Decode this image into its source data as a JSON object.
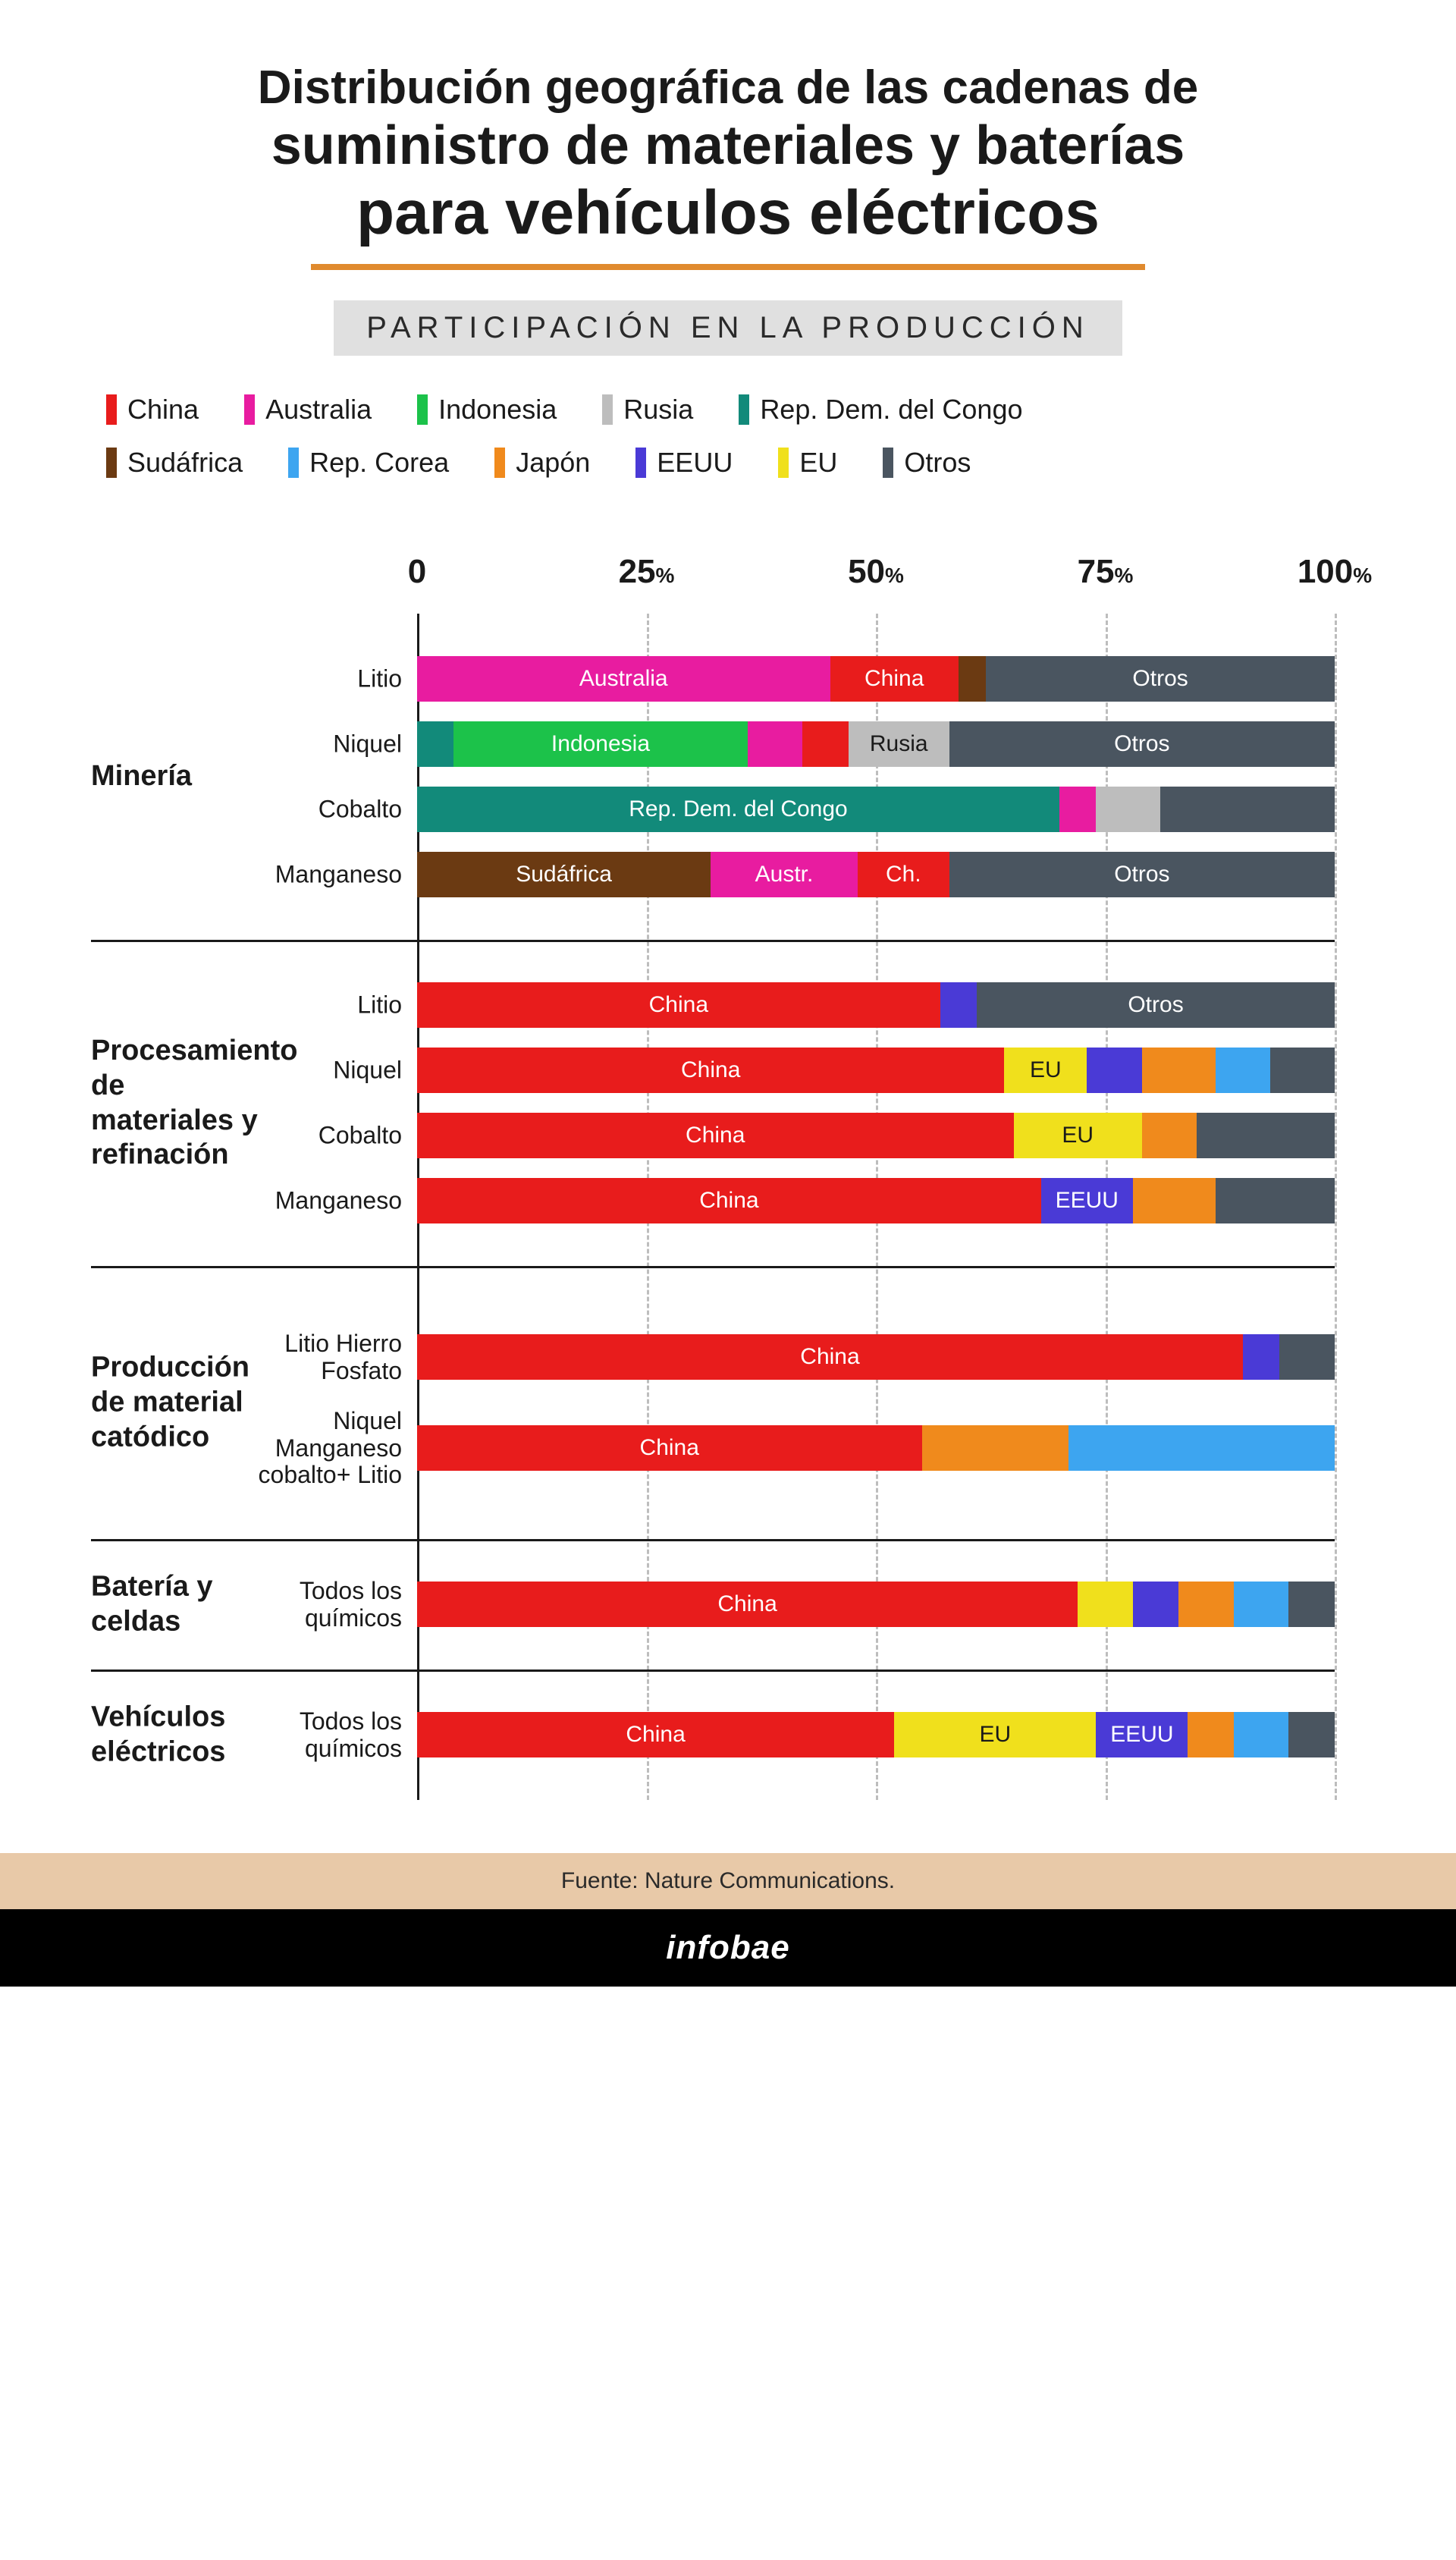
{
  "title": {
    "line1": "Distribución geográfica de las cadenas de",
    "line2": "suministro de materiales y baterías",
    "line3": "para vehículos eléctricos",
    "underline_color": "#e08a2e",
    "title_color": "#1a1a1a"
  },
  "subtitle": {
    "text": "PARTICIPACIÓN EN LA PRODUCCIÓN",
    "background": "#e0e0e0"
  },
  "legend": [
    {
      "label": "China",
      "color": "#e81c1c"
    },
    {
      "label": "Australia",
      "color": "#e81ca0"
    },
    {
      "label": "Indonesia",
      "color": "#1cc24a"
    },
    {
      "label": "Rusia",
      "color": "#bdbdbd"
    },
    {
      "label": "Rep. Dem. del Congo",
      "color": "#128a7a"
    },
    {
      "label": "Sudáfrica",
      "color": "#6b3a12"
    },
    {
      "label": "Rep. Corea",
      "color": "#3da5f0"
    },
    {
      "label": "Japón",
      "color": "#f08a1c"
    },
    {
      "label": "EEUU",
      "color": "#4a3ad6"
    },
    {
      "label": "EU",
      "color": "#f0e01c"
    },
    {
      "label": "Otros",
      "color": "#4a5560"
    }
  ],
  "axis": {
    "ticks": [
      {
        "pos": 0,
        "label": "0",
        "pct": ""
      },
      {
        "pos": 25,
        "label": "25",
        "pct": "%"
      },
      {
        "pos": 50,
        "label": "50",
        "pct": "%"
      },
      {
        "pos": 75,
        "label": "75",
        "pct": "%"
      },
      {
        "pos": 100,
        "label": "100",
        "pct": "%"
      }
    ],
    "grid_color": "#bdbdbd",
    "axis_color": "#1a1a1a"
  },
  "groups": [
    {
      "label": "Minería",
      "rows": [
        {
          "label": "Litio",
          "segments": [
            {
              "legend": "Australia",
              "value": 45,
              "text": "Australia"
            },
            {
              "legend": "China",
              "value": 14,
              "text": "China"
            },
            {
              "legend": "Sudáfrica",
              "value": 3,
              "text": ""
            },
            {
              "legend": "Otros",
              "value": 38,
              "text": "Otros"
            }
          ]
        },
        {
          "label": "Niquel",
          "segments": [
            {
              "legend": "Rep. Dem. del Congo",
              "value": 4,
              "text": ""
            },
            {
              "legend": "Indonesia",
              "value": 32,
              "text": "Indonesia"
            },
            {
              "legend": "Australia",
              "value": 6,
              "text": ""
            },
            {
              "legend": "China",
              "value": 5,
              "text": ""
            },
            {
              "legend": "Rusia",
              "value": 11,
              "text": "Rusia",
              "text_color": "#1a1a1a"
            },
            {
              "legend": "Otros",
              "value": 42,
              "text": "Otros"
            }
          ]
        },
        {
          "label": "Cobalto",
          "segments": [
            {
              "legend": "Rep. Dem. del Congo",
              "value": 70,
              "text": "Rep. Dem. del Congo"
            },
            {
              "legend": "Australia",
              "value": 4,
              "text": ""
            },
            {
              "legend": "Rusia",
              "value": 7,
              "text": ""
            },
            {
              "legend": "Otros",
              "value": 19,
              "text": ""
            }
          ]
        },
        {
          "label": "Manganeso",
          "segments": [
            {
              "legend": "Sudáfrica",
              "value": 32,
              "text": "Sudáfrica"
            },
            {
              "legend": "Australia",
              "value": 16,
              "text": "Austr."
            },
            {
              "legend": "China",
              "value": 10,
              "text": "Ch."
            },
            {
              "legend": "Otros",
              "value": 42,
              "text": "Otros"
            }
          ]
        }
      ]
    },
    {
      "label": "Procesamiento de materiales y refinación",
      "rows": [
        {
          "label": "Litio",
          "segments": [
            {
              "legend": "China",
              "value": 57,
              "text": "China"
            },
            {
              "legend": "EEUU",
              "value": 4,
              "text": ""
            },
            {
              "legend": "Otros",
              "value": 39,
              "text": "Otros"
            }
          ]
        },
        {
          "label": "Niquel",
          "segments": [
            {
              "legend": "China",
              "value": 64,
              "text": "China"
            },
            {
              "legend": "EU",
              "value": 9,
              "text": "EU",
              "text_color": "#1a1a1a"
            },
            {
              "legend": "EEUU",
              "value": 6,
              "text": ""
            },
            {
              "legend": "Japón",
              "value": 8,
              "text": ""
            },
            {
              "legend": "Rep. Corea",
              "value": 6,
              "text": ""
            },
            {
              "legend": "Otros",
              "value": 7,
              "text": ""
            }
          ]
        },
        {
          "label": "Cobalto",
          "segments": [
            {
              "legend": "China",
              "value": 65,
              "text": "China"
            },
            {
              "legend": "EU",
              "value": 14,
              "text": "EU",
              "text_color": "#1a1a1a"
            },
            {
              "legend": "Japón",
              "value": 6,
              "text": ""
            },
            {
              "legend": "Otros",
              "value": 15,
              "text": ""
            }
          ]
        },
        {
          "label": "Manganeso",
          "segments": [
            {
              "legend": "China",
              "value": 68,
              "text": "China"
            },
            {
              "legend": "EEUU",
              "value": 10,
              "text": "EEUU"
            },
            {
              "legend": "Japón",
              "value": 9,
              "text": ""
            },
            {
              "legend": "Otros",
              "value": 13,
              "text": ""
            }
          ]
        }
      ]
    },
    {
      "label": "Producción de material catódico",
      "big_gap": true,
      "rows": [
        {
          "label": "Litio Hierro Fosfato",
          "segments": [
            {
              "legend": "China",
              "value": 90,
              "text": "China"
            },
            {
              "legend": "EEUU",
              "value": 4,
              "text": ""
            },
            {
              "legend": "Otros",
              "value": 6,
              "text": ""
            }
          ]
        },
        {
          "label": "Niquel Manganeso cobalto+ Litio",
          "segments": [
            {
              "legend": "China",
              "value": 55,
              "text": "China"
            },
            {
              "legend": "Japón",
              "value": 16,
              "text": ""
            },
            {
              "legend": "Rep. Corea",
              "value": 29,
              "text": ""
            }
          ]
        }
      ]
    },
    {
      "label": "Batería y celdas",
      "rows": [
        {
          "label": "Todos los químicos",
          "segments": [
            {
              "legend": "China",
              "value": 72,
              "text": "China"
            },
            {
              "legend": "EU",
              "value": 6,
              "text": ""
            },
            {
              "legend": "EEUU",
              "value": 5,
              "text": ""
            },
            {
              "legend": "Japón",
              "value": 6,
              "text": ""
            },
            {
              "legend": "Rep. Corea",
              "value": 6,
              "text": ""
            },
            {
              "legend": "Otros",
              "value": 5,
              "text": ""
            }
          ]
        }
      ]
    },
    {
      "label": "Vehículos eléctricos",
      "rows": [
        {
          "label": "Todos los químicos",
          "segments": [
            {
              "legend": "China",
              "value": 52,
              "text": "China"
            },
            {
              "legend": "EU",
              "value": 22,
              "text": "EU",
              "text_color": "#1a1a1a"
            },
            {
              "legend": "EEUU",
              "value": 10,
              "text": "EEUU"
            },
            {
              "legend": "Japón",
              "value": 5,
              "text": ""
            },
            {
              "legend": "Rep. Corea",
              "value": 6,
              "text": ""
            },
            {
              "legend": "Otros",
              "value": 5,
              "text": ""
            }
          ]
        }
      ]
    }
  ],
  "footer": {
    "source_label": "Fuente: Nature Communications.",
    "source_bg": "#e8c9a8",
    "brand": "infobae",
    "brand_bg": "#000000"
  },
  "colors": {
    "background": "#ffffff"
  }
}
